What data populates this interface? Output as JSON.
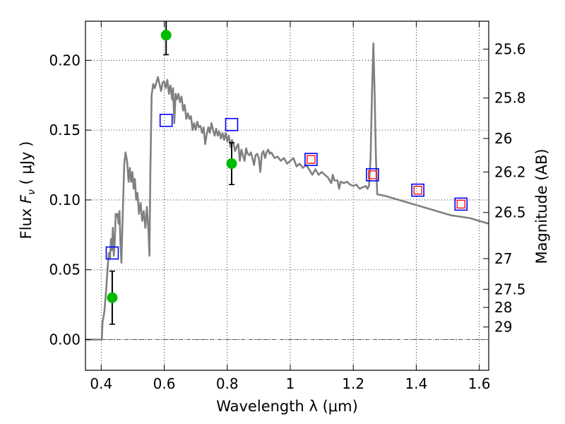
{
  "chart_data": {
    "type": "line",
    "xlabel": "Wavelength  λ (μm)",
    "ylabel": "Flux  F_ν  ( μJy )",
    "y2label": "Magnitude (AB)",
    "xlim": [
      0.35,
      1.63
    ],
    "ylim": [
      -0.022,
      0.228
    ],
    "xticks": [
      0.4,
      0.6,
      0.8,
      1.0,
      1.2,
      1.4,
      1.6
    ],
    "xtick_labels": [
      "0.4",
      "0.6",
      "0.8",
      "1",
      "1.2",
      "1.4",
      "1.6"
    ],
    "yticks": [
      0.0,
      0.05,
      0.1,
      0.15,
      0.2
    ],
    "ytick_labels": [
      "0.00",
      "0.05",
      "0.10",
      "0.15",
      "0.20"
    ],
    "mag_ticks": [
      {
        "label": "25.6",
        "flux": 0.208
      },
      {
        "label": "25.8",
        "flux": 0.173
      },
      {
        "label": "26",
        "flux": 0.144
      },
      {
        "label": "26.2",
        "flux": 0.12
      },
      {
        "label": "26.5",
        "flux": 0.091
      },
      {
        "label": "27",
        "flux": 0.058
      },
      {
        "label": "27.5",
        "flux": 0.036
      },
      {
        "label": "28",
        "flux": 0.023
      },
      {
        "label": "29",
        "flux": 0.009
      }
    ],
    "grid": true,
    "model_color": "#808080",
    "obs_color": "#00bb00",
    "model_photometry_color": "#0000ff",
    "model_photometry_inner_color": "#ff0000",
    "errorbar_color": "#000000",
    "model_spectrum": [
      [
        0.35,
        0.0
      ],
      [
        0.402,
        0.0
      ],
      [
        0.404,
        0.012
      ],
      [
        0.41,
        0.02
      ],
      [
        0.416,
        0.036
      ],
      [
        0.42,
        0.05
      ],
      [
        0.424,
        0.062
      ],
      [
        0.428,
        0.058
      ],
      [
        0.431,
        0.072
      ],
      [
        0.434,
        0.064
      ],
      [
        0.437,
        0.08
      ],
      [
        0.44,
        0.06
      ],
      [
        0.443,
        0.07
      ],
      [
        0.446,
        0.09
      ],
      [
        0.449,
        0.088
      ],
      [
        0.452,
        0.09
      ],
      [
        0.455,
        0.083
      ],
      [
        0.458,
        0.092
      ],
      [
        0.461,
        0.07
      ],
      [
        0.464,
        0.055
      ],
      [
        0.466,
        0.07
      ],
      [
        0.469,
        0.095
      ],
      [
        0.473,
        0.125
      ],
      [
        0.477,
        0.134
      ],
      [
        0.482,
        0.128
      ],
      [
        0.487,
        0.113
      ],
      [
        0.491,
        0.123
      ],
      [
        0.495,
        0.113
      ],
      [
        0.499,
        0.12
      ],
      [
        0.503,
        0.108
      ],
      [
        0.507,
        0.115
      ],
      [
        0.511,
        0.1
      ],
      [
        0.515,
        0.105
      ],
      [
        0.52,
        0.09
      ],
      [
        0.525,
        0.098
      ],
      [
        0.53,
        0.085
      ],
      [
        0.535,
        0.092
      ],
      [
        0.54,
        0.08
      ],
      [
        0.545,
        0.095
      ],
      [
        0.55,
        0.078
      ],
      [
        0.553,
        0.06
      ],
      [
        0.556,
        0.12
      ],
      [
        0.56,
        0.175
      ],
      [
        0.565,
        0.183
      ],
      [
        0.57,
        0.18
      ],
      [
        0.575,
        0.184
      ],
      [
        0.58,
        0.188
      ],
      [
        0.585,
        0.183
      ],
      [
        0.59,
        0.178
      ],
      [
        0.595,
        0.184
      ],
      [
        0.6,
        0.185
      ],
      [
        0.605,
        0.18
      ],
      [
        0.61,
        0.186
      ],
      [
        0.615,
        0.176
      ],
      [
        0.62,
        0.182
      ],
      [
        0.625,
        0.172
      ],
      [
        0.628,
        0.18
      ],
      [
        0.632,
        0.155
      ],
      [
        0.636,
        0.176
      ],
      [
        0.64,
        0.172
      ],
      [
        0.645,
        0.176
      ],
      [
        0.65,
        0.17
      ],
      [
        0.655,
        0.174
      ],
      [
        0.66,
        0.164
      ],
      [
        0.665,
        0.168
      ],
      [
        0.67,
        0.158
      ],
      [
        0.675,
        0.162
      ],
      [
        0.68,
        0.158
      ],
      [
        0.685,
        0.16
      ],
      [
        0.69,
        0.15
      ],
      [
        0.695,
        0.155
      ],
      [
        0.7,
        0.15
      ],
      [
        0.705,
        0.156
      ],
      [
        0.71,
        0.152
      ],
      [
        0.715,
        0.153
      ],
      [
        0.72,
        0.148
      ],
      [
        0.725,
        0.152
      ],
      [
        0.73,
        0.14
      ],
      [
        0.735,
        0.147
      ],
      [
        0.74,
        0.152
      ],
      [
        0.745,
        0.148
      ],
      [
        0.75,
        0.155
      ],
      [
        0.755,
        0.15
      ],
      [
        0.76,
        0.146
      ],
      [
        0.765,
        0.151
      ],
      [
        0.77,
        0.146
      ],
      [
        0.775,
        0.149
      ],
      [
        0.78,
        0.144
      ],
      [
        0.785,
        0.148
      ],
      [
        0.79,
        0.143
      ],
      [
        0.795,
        0.148
      ],
      [
        0.8,
        0.142
      ],
      [
        0.805,
        0.146
      ],
      [
        0.81,
        0.138
      ],
      [
        0.815,
        0.143
      ],
      [
        0.82,
        0.14
      ],
      [
        0.825,
        0.135
      ],
      [
        0.83,
        0.138
      ],
      [
        0.835,
        0.14
      ],
      [
        0.84,
        0.128
      ],
      [
        0.845,
        0.136
      ],
      [
        0.85,
        0.132
      ],
      [
        0.855,
        0.128
      ],
      [
        0.86,
        0.137
      ],
      [
        0.865,
        0.133
      ],
      [
        0.87,
        0.132
      ],
      [
        0.875,
        0.134
      ],
      [
        0.88,
        0.13
      ],
      [
        0.885,
        0.125
      ],
      [
        0.89,
        0.132
      ],
      [
        0.895,
        0.133
      ],
      [
        0.9,
        0.13
      ],
      [
        0.905,
        0.12
      ],
      [
        0.91,
        0.133
      ],
      [
        0.915,
        0.135
      ],
      [
        0.92,
        0.13
      ],
      [
        0.925,
        0.134
      ],
      [
        0.93,
        0.136
      ],
      [
        0.935,
        0.133
      ],
      [
        0.94,
        0.134
      ],
      [
        0.95,
        0.13
      ],
      [
        0.96,
        0.131
      ],
      [
        0.97,
        0.128
      ],
      [
        0.98,
        0.13
      ],
      [
        0.99,
        0.126
      ],
      [
        1.0,
        0.128
      ],
      [
        1.01,
        0.13
      ],
      [
        1.02,
        0.124
      ],
      [
        1.03,
        0.126
      ],
      [
        1.04,
        0.123
      ],
      [
        1.05,
        0.125
      ],
      [
        1.06,
        0.122
      ],
      [
        1.07,
        0.118
      ],
      [
        1.08,
        0.122
      ],
      [
        1.09,
        0.118
      ],
      [
        1.1,
        0.12
      ],
      [
        1.11,
        0.118
      ],
      [
        1.12,
        0.116
      ],
      [
        1.13,
        0.112
      ],
      [
        1.135,
        0.118
      ],
      [
        1.14,
        0.114
      ],
      [
        1.15,
        0.114
      ],
      [
        1.155,
        0.108
      ],
      [
        1.16,
        0.113
      ],
      [
        1.17,
        0.112
      ],
      [
        1.18,
        0.113
      ],
      [
        1.19,
        0.111
      ],
      [
        1.2,
        0.11
      ],
      [
        1.21,
        0.111
      ],
      [
        1.22,
        0.108
      ],
      [
        1.23,
        0.109
      ],
      [
        1.24,
        0.11
      ],
      [
        1.245,
        0.108
      ],
      [
        1.25,
        0.11
      ],
      [
        1.255,
        0.13
      ],
      [
        1.26,
        0.18
      ],
      [
        1.264,
        0.212
      ],
      [
        1.268,
        0.175
      ],
      [
        1.272,
        0.13
      ],
      [
        1.276,
        0.104
      ],
      [
        1.3,
        0.103
      ],
      [
        1.33,
        0.101
      ],
      [
        1.36,
        0.099
      ],
      [
        1.39,
        0.097
      ],
      [
        1.42,
        0.095
      ],
      [
        1.45,
        0.093
      ],
      [
        1.48,
        0.091
      ],
      [
        1.51,
        0.089
      ],
      [
        1.54,
        0.088
      ],
      [
        1.57,
        0.087
      ],
      [
        1.6,
        0.085
      ],
      [
        1.63,
        0.083
      ]
    ],
    "observed": [
      {
        "x": 0.435,
        "y": 0.03,
        "yerr_low": 0.019,
        "yerr_high": 0.019
      },
      {
        "x": 0.606,
        "y": 0.218,
        "yerr_low": 0.014,
        "yerr_high": 0.014
      },
      {
        "x": 0.814,
        "y": 0.126,
        "yerr_low": 0.015,
        "yerr_high": 0.015
      }
    ],
    "model_photometry": [
      {
        "x": 0.435,
        "y": 0.062,
        "inner": false
      },
      {
        "x": 0.606,
        "y": 0.157,
        "inner": false
      },
      {
        "x": 0.814,
        "y": 0.154,
        "inner": false
      },
      {
        "x": 1.066,
        "y": 0.129,
        "inner": true
      },
      {
        "x": 1.261,
        "y": 0.118,
        "inner": true
      },
      {
        "x": 1.405,
        "y": 0.107,
        "inner": true
      },
      {
        "x": 1.542,
        "y": 0.097,
        "inner": true
      }
    ]
  }
}
